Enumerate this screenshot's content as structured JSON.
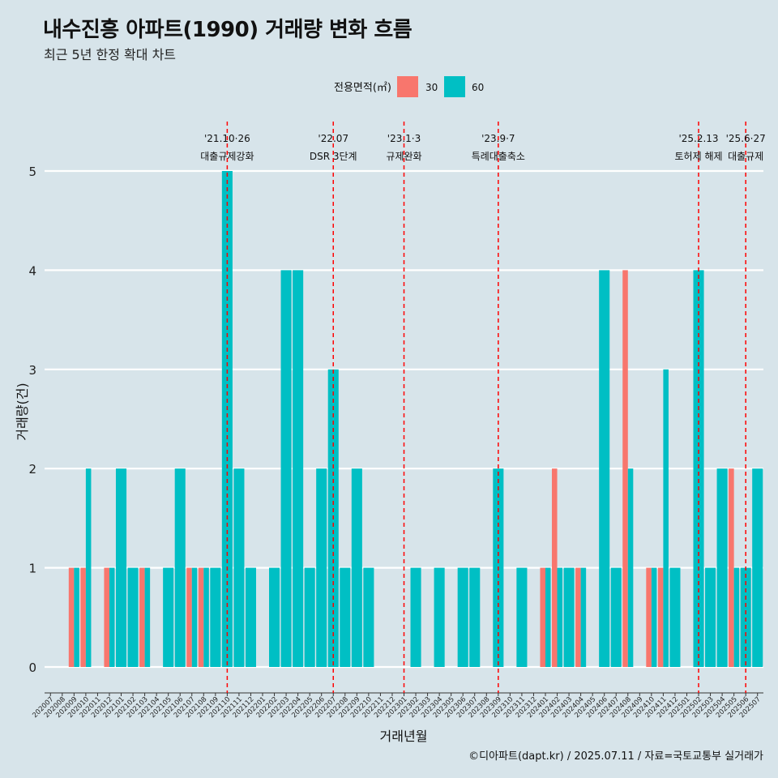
{
  "title": "내수진흥 아파트(1990) 거래량 변화 흐름",
  "subtitle": "최근 5년 한정 확대 차트",
  "caption": "©디아파트(dapt.kr) / 2025.07.11 / 자료=국토교통부 실거래가",
  "chart_data": {
    "type": "bar",
    "xlabel": "거래년월",
    "ylabel": "거래량(건)",
    "ylim": [
      0,
      5
    ],
    "yticks": [
      0,
      1,
      2,
      3,
      4,
      5
    ],
    "grid": true,
    "legend": {
      "title": "전용면적(㎡)",
      "position": "top"
    },
    "colors": {
      "30": "#f8766d",
      "60": "#00bfc4",
      "marker": "#ff0000"
    },
    "categories": [
      "202007",
      "202008",
      "202009",
      "202010",
      "202011",
      "202012",
      "202101",
      "202102",
      "202103",
      "202104",
      "202105",
      "202106",
      "202107",
      "202108",
      "202109",
      "202110",
      "202111",
      "202112",
      "202201",
      "202202",
      "202203",
      "202204",
      "202205",
      "202206",
      "202207",
      "202208",
      "202209",
      "202210",
      "202211",
      "202212",
      "202301",
      "202302",
      "202303",
      "202304",
      "202305",
      "202306",
      "202307",
      "202308",
      "202309",
      "202310",
      "202311",
      "202312",
      "202401",
      "202402",
      "202403",
      "202404",
      "202405",
      "202406",
      "202407",
      "202408",
      "202409",
      "202410",
      "202411",
      "202412",
      "202501",
      "202502",
      "202503",
      "202504",
      "202505",
      "202506",
      "202507"
    ],
    "series": [
      {
        "name": "30",
        "values": [
          0,
          0,
          1,
          1,
          0,
          1,
          0,
          0,
          1,
          0,
          0,
          0,
          1,
          1,
          0,
          0,
          0,
          0,
          0,
          0,
          0,
          0,
          0,
          0,
          0,
          0,
          0,
          0,
          0,
          0,
          0,
          0,
          0,
          0,
          0,
          0,
          0,
          0,
          0,
          0,
          0,
          0,
          1,
          2,
          0,
          1,
          0,
          0,
          0,
          4,
          0,
          1,
          1,
          0,
          0,
          0,
          0,
          0,
          2,
          0,
          0
        ]
      },
      {
        "name": "60",
        "values": [
          0,
          0,
          1,
          2,
          0,
          1,
          2,
          1,
          1,
          0,
          1,
          2,
          1,
          1,
          1,
          5,
          2,
          1,
          0,
          1,
          4,
          4,
          1,
          2,
          3,
          1,
          2,
          1,
          0,
          0,
          0,
          1,
          0,
          1,
          0,
          1,
          1,
          0,
          2,
          0,
          1,
          0,
          1,
          1,
          1,
          1,
          0,
          4,
          1,
          2,
          0,
          1,
          3,
          1,
          0,
          4,
          1,
          2,
          1,
          1,
          2
        ]
      }
    ],
    "annotations": [
      {
        "date": "'21.10·26",
        "label": "대출규제강화",
        "at": "202110"
      },
      {
        "date": "'22.07",
        "label": "DSR 3단계",
        "at": "202207"
      },
      {
        "date": "'23.1·3",
        "label": "규제완화",
        "at": "202301"
      },
      {
        "date": "'23.9·7",
        "label": "특례대출축소",
        "at": "202309"
      },
      {
        "date": "'25.2.13",
        "label": "토허제 해제",
        "at": "202502"
      },
      {
        "date": "'25.6·27",
        "label": "대출규제",
        "at": "202506"
      }
    ]
  }
}
